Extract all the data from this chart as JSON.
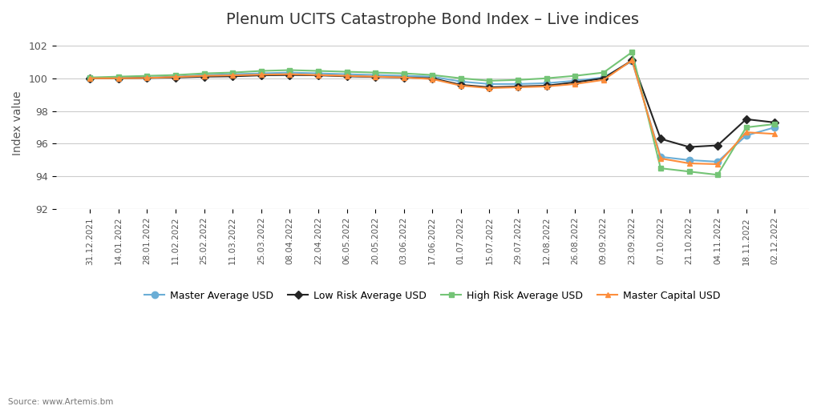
{
  "title": "Plenum UCITS Catastrophe Bond Index – Live indices",
  "ylabel": "Index value",
  "source": "Source: www.Artemis.bm",
  "ylim": [
    92,
    102.5
  ],
  "yticks": [
    92,
    94,
    96,
    98,
    100,
    102
  ],
  "background_color": "#ffffff",
  "dates": [
    "31.12.2021",
    "14.01.2022",
    "28.01.2022",
    "11.02.2022",
    "25.02.2022",
    "11.03.2022",
    "25.03.2022",
    "08.04.2022",
    "22.04.2022",
    "06.05.2022",
    "20.05.2022",
    "03.06.2022",
    "17.06.2022",
    "01.07.2022",
    "15.07.2022",
    "29.07.2022",
    "12.08.2022",
    "26.08.2022",
    "09.09.2022",
    "23.09.2022",
    "07.10.2022",
    "21.10.2022",
    "04.11.2022",
    "18.11.2022",
    "02.12.2022"
  ],
  "master_avg": [
    100.0,
    100.0,
    100.05,
    100.1,
    100.2,
    100.25,
    100.3,
    100.35,
    100.3,
    100.25,
    100.2,
    100.15,
    100.1,
    99.8,
    99.65,
    99.65,
    99.7,
    99.85,
    100.05,
    101.05,
    95.2,
    95.0,
    94.9,
    96.5,
    97.0
  ],
  "low_risk_avg": [
    100.0,
    100.0,
    100.02,
    100.05,
    100.1,
    100.12,
    100.18,
    100.2,
    100.18,
    100.12,
    100.08,
    100.05,
    100.0,
    99.6,
    99.45,
    99.5,
    99.55,
    99.75,
    100.0,
    101.1,
    96.3,
    95.8,
    95.9,
    97.5,
    97.3
  ],
  "high_risk_avg": [
    100.05,
    100.1,
    100.15,
    100.2,
    100.3,
    100.35,
    100.45,
    100.5,
    100.45,
    100.4,
    100.35,
    100.3,
    100.2,
    100.0,
    99.85,
    99.9,
    100.0,
    100.15,
    100.35,
    101.6,
    94.5,
    94.3,
    94.1,
    97.0,
    97.2
  ],
  "master_capital": [
    100.0,
    100.0,
    100.02,
    100.08,
    100.15,
    100.18,
    100.22,
    100.25,
    100.2,
    100.15,
    100.1,
    100.05,
    99.95,
    99.55,
    99.4,
    99.45,
    99.5,
    99.65,
    99.9,
    101.1,
    95.1,
    94.8,
    94.75,
    96.7,
    96.6
  ],
  "colors": {
    "master_avg": "#6baed6",
    "low_risk_avg": "#252525",
    "high_risk_avg": "#74c476",
    "master_capital": "#fd8d3c"
  },
  "markers": {
    "master_avg": "o",
    "low_risk_avg": "D",
    "high_risk_avg": "s",
    "master_capital": "^"
  },
  "legend_labels": [
    "Master Average USD",
    "Low Risk Average USD",
    "High Risk Average USD",
    "Master Capital USD"
  ]
}
